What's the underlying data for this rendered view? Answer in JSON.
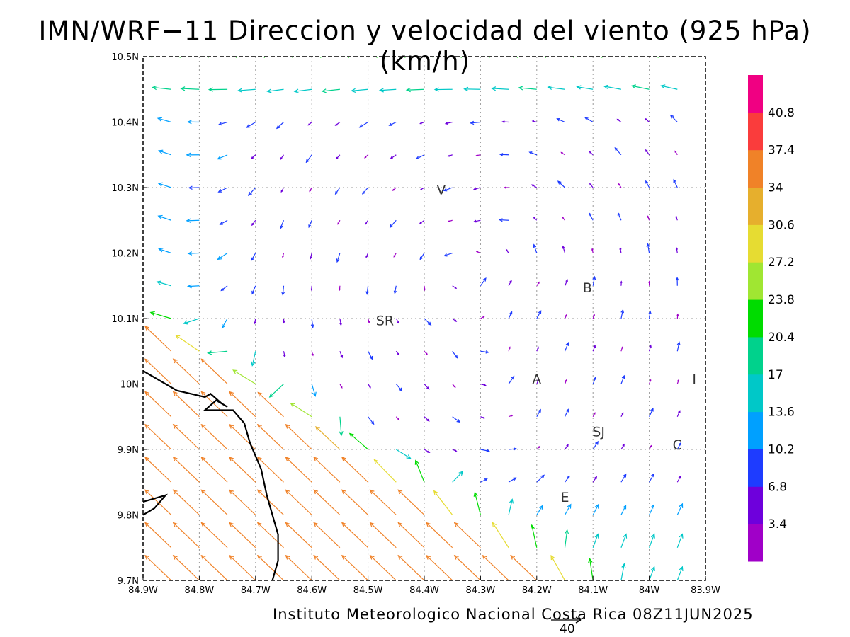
{
  "title": "IMN/WRF−11 Direccion y velocidad del viento (925 hPa)(km/h)",
  "footer": "Instituto Meteorologico Nacional Costa Rica 08Z11JUN2025",
  "reference_vector_label": "40",
  "axes": {
    "x_ticks": [
      "84.9W",
      "84.8W",
      "84.7W",
      "84.6W",
      "84.5W",
      "84.4W",
      "84.3W",
      "84.2W",
      "84.1W",
      "84W",
      "83.9W"
    ],
    "y_ticks": [
      "9.7N",
      "9.8N",
      "9.9N",
      "10N",
      "10.1N",
      "10.2N",
      "10.3N",
      "10.4N",
      "10.5N"
    ],
    "lon_range": [
      -84.9,
      -83.9
    ],
    "lat_range": [
      9.7,
      10.5
    ],
    "grid": true
  },
  "colorbar": {
    "labels": [
      "3.4",
      "6.8",
      "10.2",
      "13.6",
      "17",
      "20.4",
      "23.8",
      "27.2",
      "30.6",
      "34",
      "37.4",
      "40.8"
    ],
    "colors": [
      "#a000c8",
      "#6e00dc",
      "#1e3cff",
      "#00a0ff",
      "#00c8c8",
      "#00d28c",
      "#00dc00",
      "#a0e632",
      "#e6dc32",
      "#e6af2d",
      "#f08228",
      "#fa3c3c",
      "#f00082"
    ]
  },
  "places": [
    {
      "name": "V",
      "lon": -84.37,
      "lat": 10.29
    },
    {
      "name": "B",
      "lon": -84.11,
      "lat": 10.14
    },
    {
      "name": "SR",
      "lon": -84.47,
      "lat": 10.09
    },
    {
      "name": "A",
      "lon": -84.2,
      "lat": 10.0
    },
    {
      "name": "I",
      "lon": -83.92,
      "lat": 10.0
    },
    {
      "name": "SJ",
      "lon": -84.09,
      "lat": 9.92
    },
    {
      "name": "C",
      "lon": -83.95,
      "lat": 9.9
    },
    {
      "name": "E",
      "lon": -84.15,
      "lat": 9.82
    }
  ],
  "coastline": {
    "lines": [
      [
        [
          -84.9,
          10.02
        ],
        [
          -84.84,
          9.99
        ],
        [
          -84.79,
          9.98
        ],
        [
          -84.78,
          9.985
        ],
        [
          -84.76,
          9.97
        ],
        [
          -84.75,
          9.965
        ],
        [
          -84.77,
          9.975
        ],
        [
          -84.79,
          9.96
        ],
        [
          -84.74,
          9.96
        ],
        [
          -84.72,
          9.94
        ],
        [
          -84.71,
          9.91
        ],
        [
          -84.7,
          9.89
        ],
        [
          -84.69,
          9.87
        ],
        [
          -84.68,
          9.83
        ],
        [
          -84.67,
          9.8
        ],
        [
          -84.66,
          9.77
        ],
        [
          -84.66,
          9.73
        ],
        [
          -84.67,
          9.7
        ]
      ],
      [
        [
          -84.9,
          9.82
        ],
        [
          -84.86,
          9.83
        ],
        [
          -84.88,
          9.81
        ],
        [
          -84.9,
          9.8
        ]
      ]
    ],
    "color": "#000000"
  },
  "chart_data": {
    "type": "vector",
    "title": "IMN/WRF−11 Direccion y velocidad del viento (925 hPa)(km/h)",
    "variable": "wind direction and speed at 925 hPa",
    "units": "km/h",
    "lon_range": [
      -84.9,
      -83.9
    ],
    "lat_range": [
      9.7,
      10.5
    ],
    "grid_spacing_deg": 0.05,
    "reference_vector": 40,
    "regions": [
      {
        "name": "southwest Pacific sector",
        "direction_from": "SE",
        "speed_range": [
          27,
          41
        ]
      },
      {
        "name": "northern fringe",
        "direction_from": "E",
        "speed_range": [
          14,
          28
        ]
      },
      {
        "name": "interior valleys",
        "direction_from": "variable",
        "speed_range": [
          1,
          10
        ]
      }
    ]
  }
}
